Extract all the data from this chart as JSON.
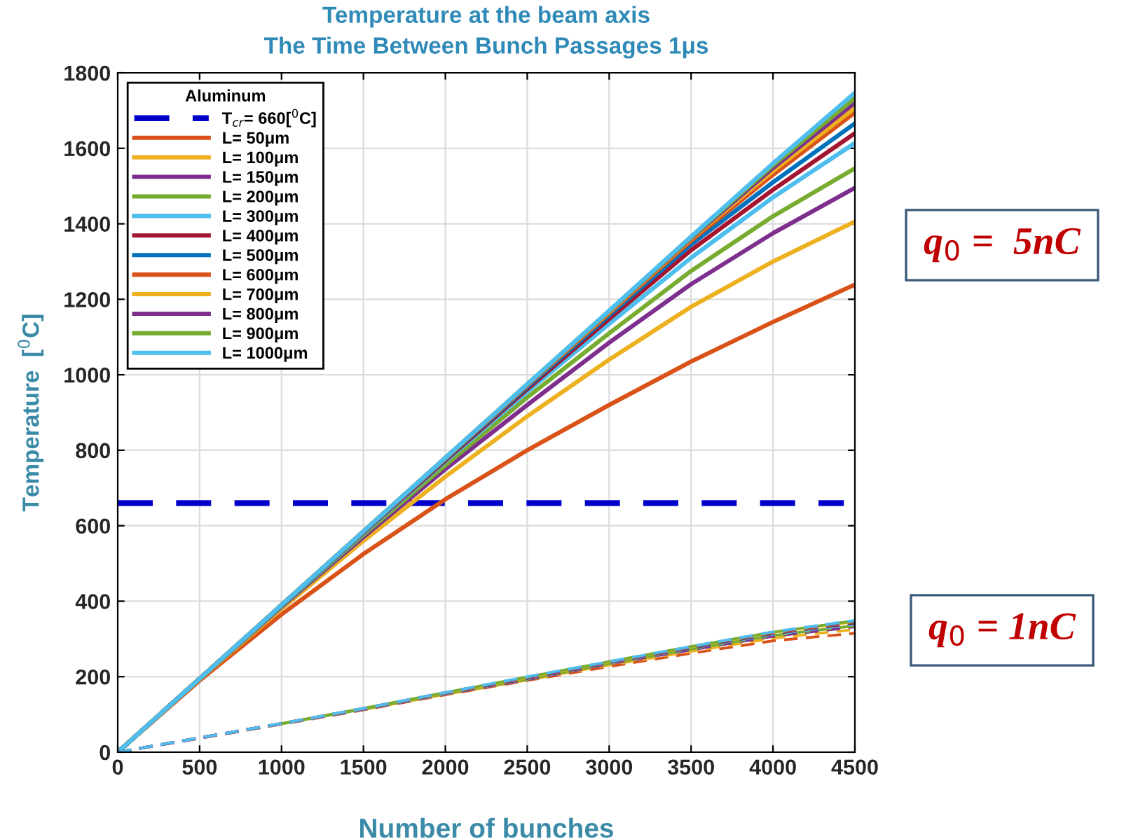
{
  "chart_data": {
    "type": "line",
    "title": "Temperature at the beam axis",
    "subtitle": "The Time Between Bunch Passages 1μs",
    "xlabel": "Number of bunches",
    "ylabel": "Temperature  [$^{0}$C]",
    "x": [
      0,
      500,
      1000,
      1500,
      2000,
      2500,
      3000,
      3500,
      4000,
      4500
    ],
    "xlim": [
      0,
      4500
    ],
    "xticks": [
      0,
      500,
      1000,
      1500,
      2000,
      2500,
      3000,
      3500,
      4000,
      4500
    ],
    "ylim": [
      0,
      1800
    ],
    "yticks": [
      0,
      200,
      400,
      600,
      800,
      1000,
      1200,
      1400,
      1600,
      1800
    ],
    "grid": true,
    "legend": "top left",
    "legend_title": "Aluminum",
    "marker": "none",
    "ref_lines": [
      {
        "axis": "y",
        "value": 660,
        "label": "T$_{cr}$= 660[$^{0}$C]",
        "color": "#0000cd",
        "line_style": "dashed"
      }
    ],
    "annotations": [
      "q$_{0}$ =  5nC",
      "q$_{0}$ = 1nC"
    ],
    "series": [
      {
        "name": "L= 50μm",
        "color": "#d95319",
        "line_style": "solid",
        "values": [
          0,
          190,
          365,
          525,
          670,
          800,
          920,
          1035,
          1140,
          1239
        ]
      },
      {
        "name": "L= 100μm",
        "color": "#edb120",
        "line_style": "solid",
        "values": [
          0,
          193,
          380,
          560,
          730,
          890,
          1040,
          1180,
          1300,
          1406
        ]
      },
      {
        "name": "L= 150μm",
        "color": "#7e2f8e",
        "line_style": "solid",
        "values": [
          0,
          194,
          385,
          570,
          750,
          920,
          1085,
          1240,
          1375,
          1495
        ]
      },
      {
        "name": "L= 200μm",
        "color": "#77ac30",
        "line_style": "solid",
        "values": [
          0,
          194,
          387,
          576,
          760,
          940,
          1110,
          1275,
          1420,
          1547
        ]
      },
      {
        "name": "L= 300μm",
        "color": "#4dbeee",
        "line_style": "solid",
        "values": [
          0,
          195,
          388,
          580,
          770,
          955,
          1135,
          1310,
          1470,
          1614
        ]
      },
      {
        "name": "L= 400μm",
        "color": "#a2142f",
        "line_style": "solid",
        "values": [
          0,
          195,
          389,
          582,
          773,
          962,
          1148,
          1330,
          1490,
          1640
        ]
      },
      {
        "name": "L= 500μm",
        "color": "#0072bd",
        "line_style": "solid",
        "values": [
          0,
          195,
          389,
          583,
          776,
          967,
          1157,
          1345,
          1510,
          1666
        ]
      },
      {
        "name": "L= 600μm",
        "color": "#d95319",
        "line_style": "solid",
        "values": [
          0,
          195,
          390,
          584,
          778,
          971,
          1163,
          1355,
          1530,
          1695
        ]
      },
      {
        "name": "L= 700μm",
        "color": "#edb120",
        "line_style": "solid",
        "values": [
          0,
          195,
          390,
          585,
          779,
          973,
          1166,
          1360,
          1540,
          1707
        ]
      },
      {
        "name": "L= 800μm",
        "color": "#7e2f8e",
        "line_style": "solid",
        "values": [
          0,
          195,
          390,
          585,
          780,
          974,
          1168,
          1362,
          1548,
          1721
        ]
      },
      {
        "name": "L= 900μm",
        "color": "#77ac30",
        "line_style": "solid",
        "values": [
          0,
          195,
          390,
          585,
          780,
          975,
          1169,
          1364,
          1555,
          1733
        ]
      },
      {
        "name": "L= 1000μm",
        "color": "#4dbeee",
        "line_style": "solid",
        "values": [
          0,
          195,
          390,
          585,
          780,
          975,
          1170,
          1366,
          1560,
          1747
        ]
      },
      {
        "color": "#d95319",
        "line_style": "dashed",
        "values": [
          0,
          37,
          74,
          112,
          152,
          190,
          227,
          262,
          295,
          315
        ]
      },
      {
        "color": "#edb120",
        "line_style": "dashed",
        "values": [
          null,
          null,
          null,
          113,
          153,
          191,
          231,
          267,
          302,
          325
        ]
      },
      {
        "color": "#7e2f8e",
        "line_style": "dashed",
        "values": [
          0,
          37,
          75,
          113,
          154,
          192,
          234,
          271,
          307,
          332
        ]
      },
      {
        "color": "#77ac30",
        "line_style": "dashed",
        "values": [
          null,
          null,
          75,
          114,
          155,
          193,
          235,
          273,
          309,
          335
        ]
      },
      {
        "color": "#4dbeee",
        "line_style": "dashed",
        "values": [
          0,
          38,
          75,
          114,
          155,
          194,
          236,
          275,
          312,
          339
        ]
      },
      {
        "color": "#a2142f",
        "line_style": "dashed",
        "values": [
          0,
          38,
          76,
          115,
          156,
          195,
          237,
          276,
          314,
          342
        ]
      },
      {
        "color": "#0072bd",
        "line_style": "dashed",
        "values": [
          0,
          38,
          76,
          115,
          157,
          196,
          238,
          277,
          315,
          344
        ]
      },
      {
        "color": "#d95319",
        "line_style": "dashed",
        "values": [
          0,
          38,
          76,
          115,
          157,
          197,
          238,
          278,
          316,
          345
        ]
      },
      {
        "color": "#edb120",
        "line_style": "dashed",
        "values": [
          null,
          null,
          null,
          116,
          157,
          197,
          239,
          279,
          317,
          346
        ]
      },
      {
        "color": "#7e2f8e",
        "line_style": "dashed",
        "values": [
          0,
          38,
          76,
          116,
          158,
          198,
          239,
          279,
          318,
          347
        ]
      },
      {
        "color": "#77ac30",
        "line_style": "dashed",
        "values": [
          null,
          null,
          76,
          116,
          158,
          199,
          240,
          280,
          318,
          348
        ]
      },
      {
        "color": "#4dbeee",
        "line_style": "dashed",
        "values": [
          0,
          38,
          76,
          116,
          158,
          200,
          240,
          280,
          319,
          349
        ]
      }
    ]
  }
}
